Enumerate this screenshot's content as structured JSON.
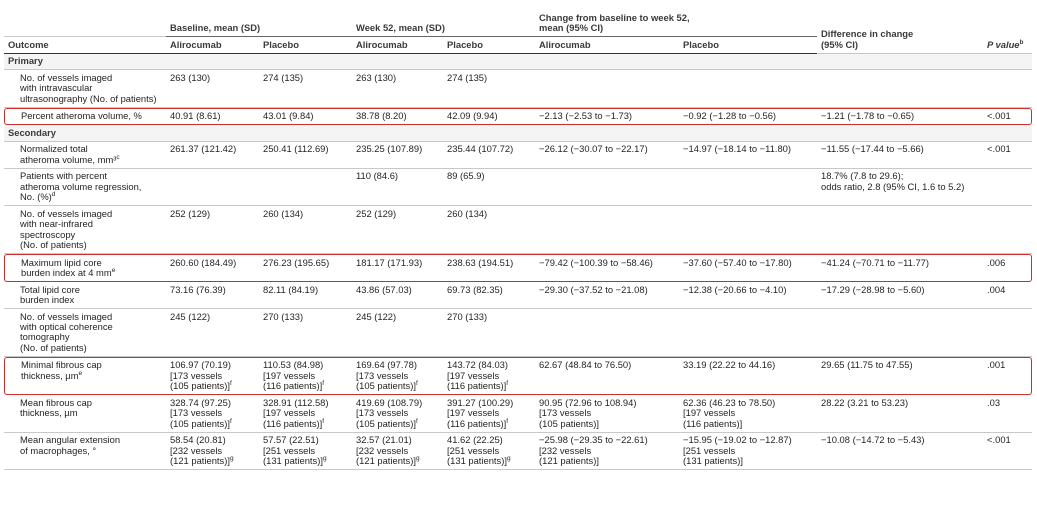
{
  "columns": {
    "outcome": "Outcome",
    "groups": [
      [
        "Baseline, mean (SD)"
      ],
      [
        "Week 52, mean (SD)"
      ],
      [
        "Change from baseline to week 52,",
        "mean (95% CI)"
      ]
    ],
    "arms": [
      "Alirocumab",
      "Placebo",
      "Alirocumab",
      "Placebo",
      "Alirocumab",
      "Placebo"
    ],
    "difference": [
      "Difference in change",
      "(95% CI)"
    ],
    "p_value": "P value",
    "p_value_sup": "b"
  },
  "rows": [
    {
      "section": "Primary"
    },
    {
      "outcome": {
        "lines": [
          "No. of vessels imaged",
          "with intravascular",
          "ultrasonography (No. of patients)"
        ]
      },
      "cells": [
        "263 (130)",
        "274 (135)",
        "263 (130)",
        "274 (135)",
        null,
        null,
        null,
        null
      ]
    },
    {
      "highlight": true,
      "outcome": {
        "lines": [
          "Percent atheroma volume, %"
        ]
      },
      "cells": [
        "40.91 (8.61)",
        "43.01 (9.84)",
        "38.78 (8.20)",
        "42.09 (9.94)",
        "−2.13 (−2.53 to −1.73)",
        "−0.92 (−1.28 to −0.56)",
        "−1.21 (−1.78 to −0.65)",
        "<.001"
      ]
    },
    {
      "section": "Secondary"
    },
    {
      "outcome": {
        "lines": [
          "Normalized total",
          "atheroma volume, mm³"
        ],
        "sup": "c"
      },
      "cells": [
        "261.37 (121.42)",
        "250.41 (112.69)",
        "235.25 (107.89)",
        "235.44 (107.72)",
        "−26.12 (−30.07 to −22.17)",
        "−14.97 (−18.14 to −11.80)",
        "−11.55 (−17.44 to −5.66)",
        "<.001"
      ]
    },
    {
      "outcome": {
        "lines": [
          "Patients with percent",
          "atheroma volume regression,",
          "No. (%)"
        ],
        "sup": "d"
      },
      "cells": [
        null,
        null,
        "110 (84.6)",
        "89 (65.9)",
        null,
        null,
        {
          "lines": [
            "18.7% (7.8 to 29.6);",
            "odds ratio, 2.8 (95% CI, 1.6 to 5.2)"
          ]
        },
        null
      ]
    },
    {
      "outcome": {
        "lines": [
          "No. of vessels imaged",
          "with near-infrared",
          "spectroscopy",
          "(No. of patients)"
        ]
      },
      "cells": [
        "252 (129)",
        "260 (134)",
        "252 (129)",
        "260 (134)",
        null,
        null,
        null,
        null
      ]
    },
    {
      "highlight": true,
      "outcome": {
        "lines": [
          "Maximum lipid core",
          "burden index at 4 mm"
        ],
        "sup": "e"
      },
      "cells": [
        "260.60 (184.49)",
        "276.23 (195.65)",
        "181.17 (171.93)",
        "238.63 (194.51)",
        "−79.42 (−100.39 to −58.46)",
        "−37.60 (−57.40 to −17.80)",
        "−41.24 (−70.71 to −11.77)",
        ".006"
      ]
    },
    {
      "outcome": {
        "lines": [
          "Total lipid core",
          "burden index"
        ]
      },
      "cells": [
        "73.16 (76.39)",
        "82.11 (84.19)",
        "43.86 (57.03)",
        "69.73 (82.35)",
        "−29.30 (−37.52 to −21.08)",
        "−12.38 (−20.66 to −4.10)",
        "−17.29 (−28.98 to −5.60)",
        ".004"
      ]
    },
    {
      "outcome": {
        "lines": [
          "No. of vessels imaged",
          "with optical coherence",
          "tomography",
          "(No. of patients)"
        ]
      },
      "cells": [
        "245 (122)",
        "270 (133)",
        "245 (122)",
        "270 (133)",
        null,
        null,
        null,
        null
      ]
    },
    {
      "highlight": true,
      "outcome": {
        "lines": [
          "Minimal fibrous cap",
          "thickness, µm"
        ],
        "sup": "e"
      },
      "cells": [
        {
          "lines": [
            "106.97 (70.19)",
            "[173 vessels",
            "(105 patients)]"
          ],
          "sup": "f"
        },
        {
          "lines": [
            "110.53 (84.98)",
            "[197 vessels",
            "(116 patients)]"
          ],
          "sup": "f"
        },
        {
          "lines": [
            "169.64 (97.78)",
            "[173 vessels",
            "(105 patients)]"
          ],
          "sup": "f"
        },
        {
          "lines": [
            "143.72 (84.03)",
            "[197 vessels",
            "(116 patients)]"
          ],
          "sup": "f"
        },
        "62.67 (48.84 to 76.50)",
        "33.19 (22.22 to 44.16)",
        "29.65 (11.75 to 47.55)",
        ".001"
      ]
    },
    {
      "outcome": {
        "lines": [
          "Mean fibrous cap",
          "thickness, µm"
        ]
      },
      "cells": [
        {
          "lines": [
            "328.74 (97.25)",
            "[173 vessels",
            "(105 patients)]"
          ],
          "sup": "f"
        },
        {
          "lines": [
            "328.91 (112.58)",
            "[197 vessels",
            "(116 patients)]"
          ],
          "sup": "f"
        },
        {
          "lines": [
            "419.69 (108.79)",
            "[173 vessels",
            "(105 patients)]"
          ],
          "sup": "f"
        },
        {
          "lines": [
            "391.27 (100.29)",
            "[197 vessels",
            "(116 patients)]"
          ],
          "sup": "f"
        },
        {
          "lines": [
            "90.95 (72.96 to 108.94)",
            "[173 vessels",
            "(105 patients)]"
          ]
        },
        {
          "lines": [
            "62.36 (46.23 to 78.50)",
            "[197 vessels",
            "(116 patients)]"
          ]
        },
        "28.22 (3.21 to 53.23)",
        ".03"
      ]
    },
    {
      "outcome": {
        "lines": [
          "Mean angular extension",
          "of macrophages, °"
        ]
      },
      "cells": [
        {
          "lines": [
            "58.54 (20.81)",
            "[232 vessels",
            "(121 patients)]"
          ],
          "sup": "g"
        },
        {
          "lines": [
            "57.57 (22.51)",
            "[251 vessels",
            "(131 patients)]"
          ],
          "sup": "g"
        },
        {
          "lines": [
            "32.57 (21.01)",
            "[232 vessels",
            "(121 patients)]"
          ],
          "sup": "g"
        },
        {
          "lines": [
            "41.62 (22.25)",
            "[251 vessels",
            "(131 patients)]"
          ],
          "sup": "g"
        },
        {
          "lines": [
            "−25.98 (−29.35 to −22.61)",
            "[232 vessels",
            "(121 patients)]"
          ]
        },
        {
          "lines": [
            "−15.95 (−19.02 to −12.87)",
            "[251 vessels",
            "(131 patients)]"
          ]
        },
        "−10.08 (−14.72 to −5.43)",
        "<.001"
      ]
    }
  ]
}
